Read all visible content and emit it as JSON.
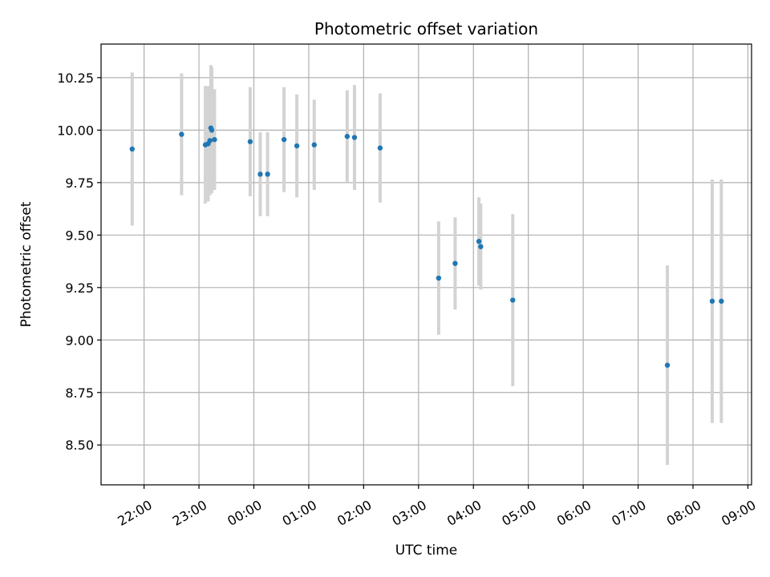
{
  "chart_data": {
    "type": "scatter",
    "title": "Photometric offset variation",
    "xlabel": "UTC time",
    "ylabel": "Photometric offset",
    "x_unit": "UTC time (HH:MM); times after midnight fall on the following day",
    "xlim": [
      "21:13",
      "09:04"
    ],
    "ylim": [
      8.31,
      10.41
    ],
    "x_ticks": [
      "22:00",
      "23:00",
      "00:00",
      "01:00",
      "02:00",
      "03:00",
      "04:00",
      "05:00",
      "06:00",
      "07:00",
      "08:00",
      "09:00"
    ],
    "y_ticks": [
      "8.50",
      "8.75",
      "9.00",
      "9.25",
      "9.50",
      "9.75",
      "10.00",
      "10.25"
    ],
    "grid": true,
    "point_color": "#1f77b4",
    "errorbar_color": "#d3d3d3",
    "points": [
      {
        "x": "21:47",
        "y": 9.91,
        "err": 0.365
      },
      {
        "x": "22:41",
        "y": 9.98,
        "err": 0.29
      },
      {
        "x": "23:07",
        "y": 9.93,
        "err": 0.28
      },
      {
        "x": "23:10",
        "y": 9.935,
        "err": 0.275
      },
      {
        "x": "23:12",
        "y": 9.95,
        "err": 0.26
      },
      {
        "x": "23:13",
        "y": 10.01,
        "err": 0.3
      },
      {
        "x": "23:14",
        "y": 10.0,
        "err": 0.3
      },
      {
        "x": "23:17",
        "y": 9.955,
        "err": 0.24
      },
      {
        "x": "23:56",
        "y": 9.945,
        "err": 0.26
      },
      {
        "x": "00:07",
        "y": 9.79,
        "err": 0.2
      },
      {
        "x": "00:15",
        "y": 9.79,
        "err": 0.2
      },
      {
        "x": "00:33",
        "y": 9.955,
        "err": 0.25
      },
      {
        "x": "00:47",
        "y": 9.925,
        "err": 0.245
      },
      {
        "x": "01:06",
        "y": 9.93,
        "err": 0.215
      },
      {
        "x": "01:42",
        "y": 9.97,
        "err": 0.22
      },
      {
        "x": "01:50",
        "y": 9.965,
        "err": 0.25
      },
      {
        "x": "02:18",
        "y": 9.915,
        "err": 0.26
      },
      {
        "x": "03:22",
        "y": 9.295,
        "err": 0.27
      },
      {
        "x": "03:40",
        "y": 9.365,
        "err": 0.22
      },
      {
        "x": "04:06",
        "y": 9.47,
        "err": 0.21
      },
      {
        "x": "04:08",
        "y": 9.445,
        "err": 0.205
      },
      {
        "x": "04:43",
        "y": 9.19,
        "err": 0.41
      },
      {
        "x": "07:32",
        "y": 8.88,
        "err": 0.475
      },
      {
        "x": "08:21",
        "y": 9.185,
        "err": 0.58
      },
      {
        "x": "08:31",
        "y": 9.185,
        "err": 0.58
      }
    ]
  }
}
